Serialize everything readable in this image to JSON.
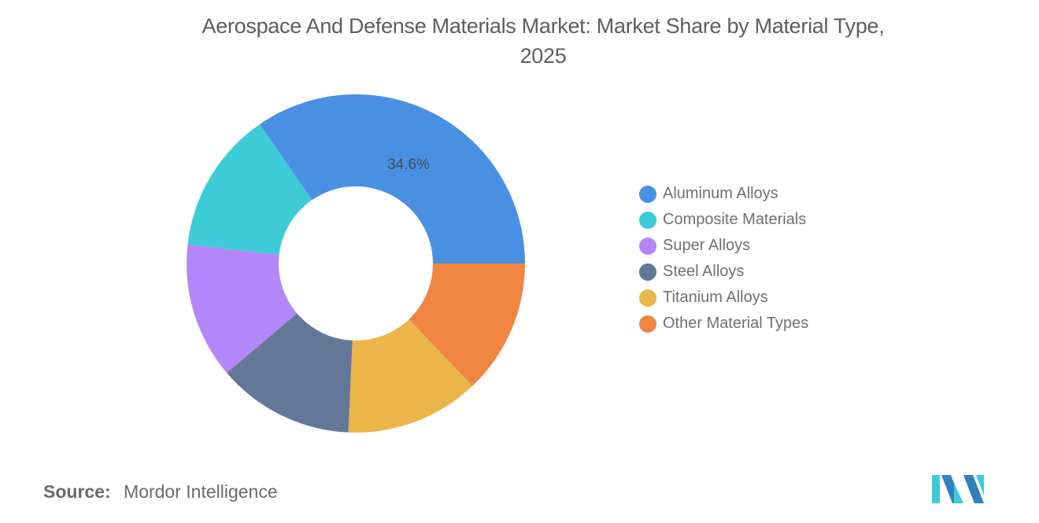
{
  "chart_data": {
    "type": "pie",
    "variant": "donut",
    "title": "Aerospace And Defense Materials Market: Market Share by Material Type, 2025",
    "categories": [
      "Aluminum Alloys",
      "Composite Materials",
      "Super Alloys",
      "Steel Alloys",
      "Titanium Alloys",
      "Other Material Types"
    ],
    "values": [
      34.6,
      13.6,
      13.0,
      13.1,
      12.8,
      12.9
    ],
    "colors": [
      "#4a90e2",
      "#3ecbd8",
      "#b386f9",
      "#637899",
      "#ebb54a",
      "#f08541"
    ],
    "data_labels": [
      {
        "category": "Aluminum Alloys",
        "text": "34.6%"
      }
    ],
    "legend_position": "right",
    "unit": "%"
  },
  "title": {
    "line1": "Aerospace And Defense Materials Market: Market Share by Material Type,",
    "line2": "2025"
  },
  "legend": {
    "items": [
      {
        "label": "Aluminum Alloys",
        "color": "#4a90e2"
      },
      {
        "label": "Composite Materials",
        "color": "#3ecbd8"
      },
      {
        "label": "Super Alloys",
        "color": "#b386f9"
      },
      {
        "label": "Steel Alloys",
        "color": "#637899"
      },
      {
        "label": "Titanium Alloys",
        "color": "#ebb54a"
      },
      {
        "label": "Other Material Types",
        "color": "#f08541"
      }
    ]
  },
  "slice_label": "34.6%",
  "source": {
    "key": "Source:",
    "value": "Mordor Intelligence"
  },
  "logo": {
    "icon": "mordor-intelligence-logo-icon"
  }
}
